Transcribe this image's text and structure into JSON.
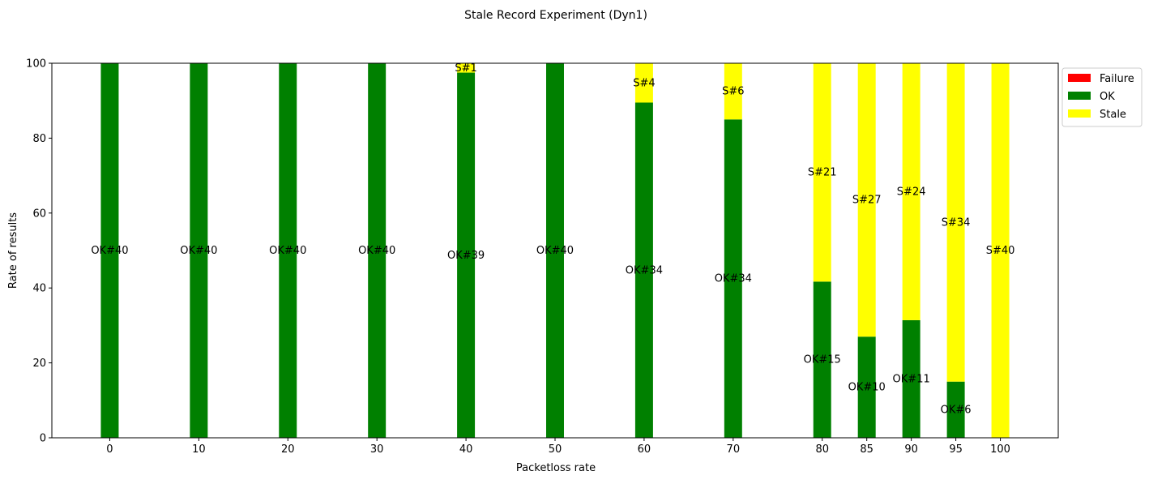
{
  "chart_data": {
    "type": "bar",
    "stacked": true,
    "title": "Stale Record Experiment (Dyn1)",
    "xlabel": "Packetloss rate",
    "ylabel": "Rate of results",
    "ylim": [
      0,
      100
    ],
    "yticks": [
      0,
      20,
      40,
      60,
      80,
      100
    ],
    "xlim": [
      -6.5,
      106.5
    ],
    "x": [
      0,
      10,
      20,
      30,
      40,
      50,
      60,
      70,
      80,
      85,
      90,
      95,
      100
    ],
    "bar_width": 2,
    "legend_position": "upper-right-outside",
    "series": [
      {
        "name": "Failure",
        "color": "#ff0000",
        "values": [
          0,
          0,
          0,
          0,
          0,
          0,
          0,
          0,
          0,
          0,
          0,
          0,
          0
        ],
        "labels": [
          "",
          "",
          "",
          "",
          "",
          "",
          "",
          "",
          "",
          "",
          "",
          "",
          ""
        ]
      },
      {
        "name": "OK",
        "color": "#008000",
        "values": [
          100,
          100,
          100,
          100,
          97.5,
          100,
          89.5,
          85,
          41.7,
          27,
          31.4,
          15,
          0
        ],
        "labels": [
          "OK#40",
          "OK#40",
          "OK#40",
          "OK#40",
          "OK#39",
          "OK#40",
          "OK#34",
          "OK#34",
          "OK#15",
          "OK#10",
          "OK#11",
          "OK#6",
          ""
        ]
      },
      {
        "name": "Stale",
        "color": "#ffff00",
        "values": [
          0,
          0,
          0,
          0,
          2.5,
          0,
          10.5,
          15,
          58.3,
          73,
          68.6,
          85,
          100
        ],
        "labels": [
          "",
          "",
          "",
          "",
          "S#1",
          "",
          "S#4",
          "S#6",
          "S#21",
          "S#27",
          "S#24",
          "S#34",
          "S#40"
        ]
      }
    ]
  }
}
